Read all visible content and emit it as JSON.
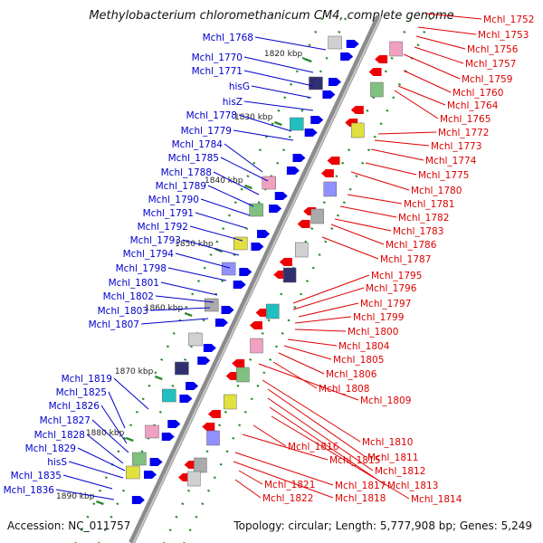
{
  "title": "Methylobacterium chloromethanicum CM4, complete genome",
  "accession": "Accession: NC_011757",
  "topology": "Topology: circular; Length: 5,777,908 bp; Genes: 5,249",
  "colors": {
    "left_label": "#0000cc",
    "right_label": "#dd0000",
    "backbone": "#8c8c8c",
    "tick": "#2e8b2e",
    "fwd_gene": "#0000ee",
    "rev_gene": "#ee0000"
  },
  "ticks": [
    "1820 kbp",
    "1830 kbp",
    "1840 kbp",
    "1850 kbp",
    "1860 kbp",
    "1870 kbp",
    "1880 kbp",
    "1890 kbp"
  ],
  "left_genes": [
    "Mchl_1768",
    "Mchl_1770",
    "Mchl_1771",
    "hisG",
    "hisZ",
    "Mchl_1778",
    "Mchl_1779",
    "Mchl_1784",
    "Mchl_1785",
    "Mchl_1788",
    "Mchl_1789",
    "Mchl_1790",
    "Mchl_1791",
    "Mchl_1792",
    "Mchl_1793",
    "Mchl_1794",
    "Mchl_1798",
    "Mchl_1801",
    "Mchl_1802",
    "Mchl_1803",
    "Mchl_1807",
    "Mchl_1819",
    "Mchl_1825",
    "Mchl_1826",
    "Mchl_1827",
    "Mchl_1828",
    "Mchl_1829",
    "hisS",
    "Mchl_1835",
    "Mchl_1836"
  ],
  "right_genes": [
    "Mchl_1752",
    "Mchl_1753",
    "Mchl_1756",
    "Mchl_1757",
    "Mchl_1759",
    "Mchl_1760",
    "Mchl_1764",
    "Mchl_1765",
    "Mchl_1772",
    "Mchl_1773",
    "Mchl_1774",
    "Mchl_1775",
    "Mchl_1780",
    "Mchl_1781",
    "Mchl_1782",
    "Mchl_1783",
    "Mchl_1786",
    "Mchl_1787",
    "Mchl_1795",
    "Mchl_1796",
    "Mchl_1797",
    "Mchl_1799",
    "Mchl_1800",
    "Mchl_1804",
    "Mchl_1805",
    "Mchl_1806",
    "Mchl_1808",
    "Mchl_1809",
    "Mchl_1810",
    "Mchl_1811",
    "Mchl_1812",
    "Mchl_1813",
    "Mchl_1814",
    "Mchl_1816",
    "Mchl_1815",
    "Mchl_1817",
    "Mchl_1818",
    "Mchl_1821",
    "Mchl_1822"
  ]
}
